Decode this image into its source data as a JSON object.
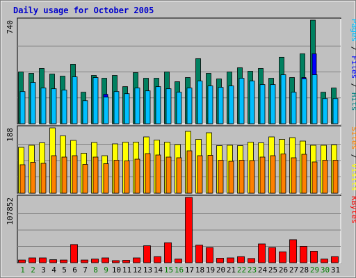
{
  "chart_data": {
    "type": "bar",
    "title": "Daily usage for October 2005",
    "categories": [
      "1",
      "2",
      "3",
      "4",
      "5",
      "6",
      "7",
      "8",
      "9",
      "10",
      "11",
      "12",
      "13",
      "14",
      "15",
      "16",
      "17",
      "18",
      "19",
      "20",
      "21",
      "22",
      "23",
      "24",
      "25",
      "26",
      "27",
      "28",
      "29",
      "30",
      "31"
    ],
    "weekend_days": [
      "1",
      "2",
      "8",
      "9",
      "15",
      "16",
      "22",
      "23",
      "29",
      "30"
    ],
    "panels": [
      {
        "id": "top",
        "ymax_label": "740",
        "ymax": 740,
        "right_label_parts": [
          {
            "text": "Pages",
            "color": "#00bfff"
          },
          {
            "text": " / ",
            "color": "#000000"
          },
          {
            "text": "Files",
            "color": "#0000ff"
          },
          {
            "text": " / ",
            "color": "#000000"
          },
          {
            "text": "Hits",
            "color": "#008080"
          }
        ],
        "series": [
          {
            "name": "Hits",
            "color": "#008060",
            "values": [
              370,
              360,
              395,
              355,
              340,
              425,
              225,
              345,
              325,
              345,
              265,
              365,
              325,
              325,
              370,
              300,
              330,
              465,
              360,
              320,
              370,
              400,
              375,
              395,
              325,
              475,
              330,
              500,
              740,
              225,
              255
            ]
          },
          {
            "name": "Files",
            "color": "#0000ff",
            "values": [
              40,
              30,
              30,
              30,
              30,
              30,
              30,
              30,
              210,
              20,
              10,
              20,
              20,
              20,
              20,
              20,
              40,
              40,
              40,
              40,
              40,
              40,
              40,
              40,
              40,
              275,
              40,
              330,
              500,
              20,
              40
            ]
          },
          {
            "name": "Pages",
            "color": "#00bfff",
            "values": [
              230,
              295,
              255,
              250,
              240,
              335,
              165,
              330,
              190,
              230,
              215,
              255,
              235,
              265,
              250,
              225,
              255,
              305,
              270,
              260,
              270,
              325,
              305,
              280,
              280,
              350,
              225,
              320,
              350,
              180,
              180
            ]
          }
        ]
      },
      {
        "id": "middle",
        "ymax_label": "188",
        "ymax": 188,
        "right_label_parts": [
          {
            "text": "Sites",
            "color": "#ff8000"
          },
          {
            "text": " / ",
            "color": "#000000"
          },
          {
            "text": "Visits",
            "color": "#ffff00"
          }
        ],
        "series": [
          {
            "name": "Visits",
            "color": "#ffff00",
            "values": [
              132,
              138,
              145,
              188,
              165,
              152,
              115,
              146,
              108,
              142,
              147,
              147,
              162,
              153,
              147,
              140,
              178,
              155,
              174,
              137,
              138,
              137,
              147,
              145,
              162,
              155,
              160,
              150,
              138,
              138,
              139
            ]
          },
          {
            "name": "Sites",
            "color": "#ff8000",
            "values": [
              82,
              89,
              86,
              108,
              104,
              108,
              83,
              104,
              85,
              95,
              93,
              98,
              114,
              110,
              104,
              102,
              122,
              108,
              109,
              95,
              92,
              95,
              94,
              104,
              108,
              113,
              102,
              112,
              90,
              95,
              95
            ]
          }
        ]
      },
      {
        "id": "bottom",
        "ymax_label": "107852",
        "ymax": 107852,
        "right_label_parts": [
          {
            "text": "KBytes",
            "color": "#ff0000"
          }
        ],
        "series": [
          {
            "name": "KBytes",
            "color": "#ff0000",
            "values": [
              4500,
              8000,
              8000,
              5000,
              4500,
              30000,
              4500,
              6000,
              8000,
              3500,
              4000,
              8000,
              28000,
              10000,
              33000,
              6000,
              107852,
              29000,
              25000,
              7500,
              8000,
              10000,
              7000,
              31000,
              25000,
              18000,
              38000,
              27000,
              19000,
              6000,
              10000
            ]
          }
        ]
      }
    ]
  },
  "colors": {
    "background": "#c0c0c0",
    "title": "#0000cc",
    "weekday_label": "#000000",
    "weekend_label": "#008000"
  }
}
